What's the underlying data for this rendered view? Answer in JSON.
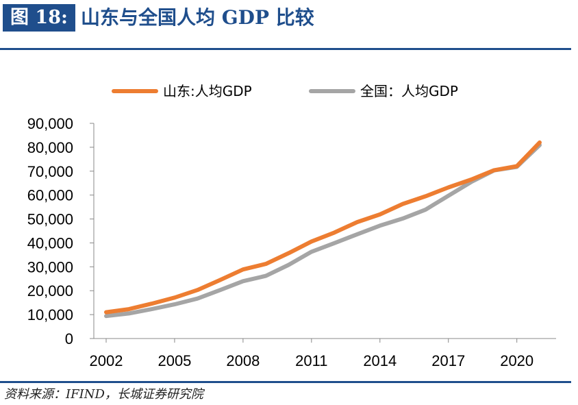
{
  "header": {
    "figure_label": "图 18:",
    "title": "山东与全国人均 GDP 比较"
  },
  "source": "资料来源：IFIND，长城证券研究院",
  "colors": {
    "brand": "#1f4e8c",
    "shandong": "#ed7d31",
    "national": "#a5a5a5"
  },
  "chart_data": {
    "type": "line",
    "title": "",
    "xlabel": "",
    "ylabel": "",
    "x": [
      2002,
      2003,
      2004,
      2005,
      2006,
      2007,
      2008,
      2009,
      2010,
      2011,
      2012,
      2013,
      2014,
      2015,
      2016,
      2017,
      2018,
      2019,
      2020,
      2021
    ],
    "x_tick_labels": [
      "2002",
      "2005",
      "2008",
      "2011",
      "2014",
      "2017",
      "2020"
    ],
    "ylim": [
      0,
      90000
    ],
    "y_ticks": [
      0,
      10000,
      20000,
      30000,
      40000,
      50000,
      60000,
      70000,
      80000,
      90000
    ],
    "y_tick_labels": [
      "0",
      "10,000",
      "20,000",
      "30,000",
      "40,000",
      "50,000",
      "60,000",
      "70,000",
      "80,000",
      "90,000"
    ],
    "grid": false,
    "legend_position": "top",
    "series": [
      {
        "name": "山东:人均GDP",
        "color": "#ed7d31",
        "values": [
          11000,
          12300,
          14600,
          17100,
          20300,
          24500,
          28900,
          31200,
          35700,
          40600,
          44300,
          48700,
          51900,
          56300,
          59500,
          63200,
          66500,
          70400,
          72100,
          82000
        ]
      },
      {
        "name": "全国：人均GDP",
        "color": "#a5a5a5",
        "values": [
          9400,
          10500,
          12300,
          14300,
          16700,
          20300,
          24000,
          26200,
          30800,
          36300,
          39900,
          43600,
          47200,
          50200,
          53900,
          59700,
          65500,
          70300,
          71800,
          80900
        ]
      }
    ]
  }
}
